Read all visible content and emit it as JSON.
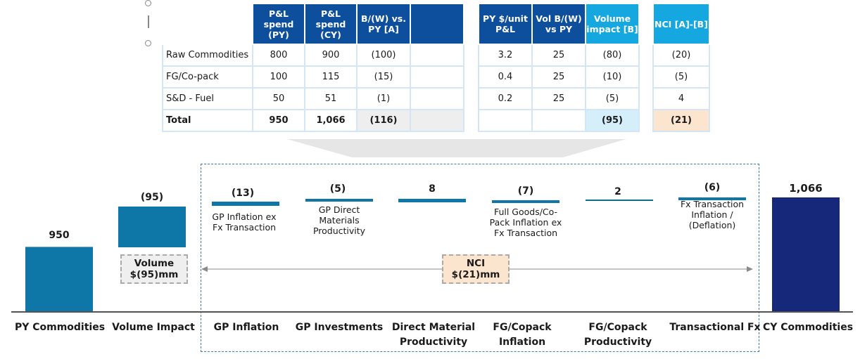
{
  "table_left": {
    "headers": [
      "P&L spend (PY)",
      "P&L spend (CY)",
      "B/(W) vs. PY [A]",
      ""
    ],
    "rows": [
      {
        "label": "Raw Commodities",
        "cells": [
          "800",
          "900",
          "(100)",
          ""
        ]
      },
      {
        "label": "FG/Co-pack",
        "cells": [
          "100",
          "115",
          "(15)",
          ""
        ]
      },
      {
        "label": "S&D - Fuel",
        "cells": [
          "50",
          "51",
          "(1)",
          ""
        ]
      },
      {
        "label": "Total",
        "cells": [
          "950",
          "1,066",
          "(116)",
          ""
        ]
      }
    ]
  },
  "table_right": {
    "headers": [
      "PY $/unit P&L",
      "Vol B/(W) vs PY",
      "Volume impact [B]"
    ],
    "rows": [
      [
        "3.2",
        "25",
        "(80)"
      ],
      [
        "0.4",
        "25",
        "(10)"
      ],
      [
        "0.2",
        "25",
        "(5)"
      ],
      [
        "",
        "",
        "(95)"
      ]
    ]
  },
  "table_nci": {
    "header": "NCI [A]-[B]",
    "rows": [
      "(20)",
      "(5)",
      "4",
      "(21)"
    ]
  },
  "boxes": {
    "volume": "Volume $(95)mm",
    "nci": "NCI $(21)mm"
  },
  "chart_data": {
    "type": "waterfall",
    "colors": {
      "primary": "#0e77a8",
      "total_cy": "#16287a",
      "ref_line": "#0e77a8",
      "peach": "#fbe5cf"
    },
    "categories": [
      "PY Commodities",
      "Volume Impact",
      "GP Inflation",
      "GP Investments",
      "Direct Material Productivity",
      "FG/Copack Inflation",
      "FG/Copack Productivity",
      "Transactional Fx",
      "CY Commodities"
    ],
    "value_labels": [
      "950",
      "(95)",
      "(13)",
      "(5)",
      "8",
      "(7)",
      "2",
      "(6)",
      "1,066"
    ],
    "values": [
      950,
      -95,
      -13,
      -5,
      8,
      -7,
      2,
      -6,
      1066
    ],
    "descriptions": [
      "",
      "",
      "GP Inflation ex Fx Transaction",
      "GP Direct Materials Productivity",
      "",
      "Full Goods/Co-Pack Inflation ex Fx Transaction",
      "",
      "Fx Transaction Inflation / (Deflation)",
      ""
    ]
  }
}
